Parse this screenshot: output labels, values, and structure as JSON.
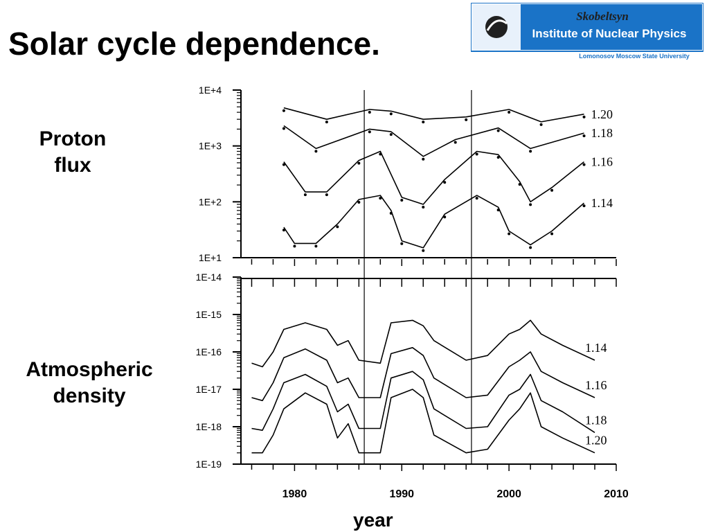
{
  "slide": {
    "title": "Solar cycle dependence."
  },
  "logo": {
    "top_line": "Skobeltsyn",
    "main_line": "Institute of Nuclear Physics",
    "university": "Lomonosov Moscow State University",
    "colors": {
      "blue": "#1a73c7",
      "red": "#c0392b",
      "dark": "#202020"
    }
  },
  "labels": {
    "proton": "Proton flux",
    "proton_lines": [
      "Proton",
      "flux"
    ],
    "atmos_lines": [
      "Atmospheric",
      "density"
    ],
    "xaxis": "year"
  },
  "chart_data": [
    {
      "type": "line",
      "panel": "proton flux",
      "ylabel": "Proton flux",
      "yscale": "log",
      "ylim": [
        10,
        10000
      ],
      "ytick_labels": [
        "1E+4",
        "1E+3",
        "1E+2",
        "1E+1"
      ],
      "xlim": [
        1975,
        2010
      ],
      "legend": "none",
      "series": [
        {
          "name": "1.20",
          "x": [
            1979,
            1983,
            1987,
            1989,
            1992,
            1996,
            2000,
            2003,
            2007
          ],
          "y": [
            4800,
            3000,
            4500,
            4200,
            3000,
            3300,
            4500,
            2700,
            3700
          ]
        },
        {
          "name": "1.18",
          "x": [
            1979,
            1982,
            1987,
            1989,
            1992,
            1995,
            1999,
            2002,
            2007
          ],
          "y": [
            2300,
            900,
            2000,
            1800,
            650,
            1300,
            2100,
            900,
            1700
          ]
        },
        {
          "name": "1.16",
          "x": [
            1979,
            1981,
            1983,
            1986,
            1988,
            1990,
            1992,
            1994,
            1997,
            1999,
            2001,
            2002,
            2004,
            2007
          ],
          "y": [
            520,
            150,
            150,
            550,
            800,
            120,
            90,
            250,
            800,
            700,
            230,
            100,
            180,
            520
          ]
        },
        {
          "name": "1.14",
          "x": [
            1979,
            1980,
            1982,
            1984,
            1986,
            1988,
            1989,
            1990,
            1992,
            1994,
            1997,
            1999,
            2000,
            2002,
            2004,
            2007
          ],
          "y": [
            35,
            18,
            18,
            40,
            110,
            130,
            70,
            20,
            15,
            60,
            130,
            80,
            30,
            17,
            30,
            95
          ]
        }
      ],
      "annotations": [
        "1.20",
        "1.18",
        "1.16",
        "1.14"
      ]
    },
    {
      "type": "line",
      "panel": "atmospheric density",
      "ylabel": "Atmospheric density",
      "yscale": "log",
      "ylim": [
        1e-19,
        1e-14
      ],
      "ytick_labels": [
        "1E-14",
        "1E-15",
        "1E-16",
        "1E-17",
        "1E-18",
        "1E-19"
      ],
      "xlim": [
        1975,
        2010
      ],
      "xtick_labels": [
        "1980",
        "1990",
        "2000",
        "2010"
      ],
      "xlabel": "year",
      "legend": "none",
      "series": [
        {
          "name": "1.14",
          "x": [
            1976,
            1977,
            1978,
            1979,
            1981,
            1983,
            1984,
            1985,
            1986,
            1988,
            1989,
            1991,
            1992,
            1993,
            1996,
            1998,
            2000,
            2001,
            2002,
            2003,
            2005,
            2008
          ],
          "y": [
            5e-17,
            4e-17,
            1e-16,
            4e-16,
            6e-16,
            4e-16,
            1.5e-16,
            2e-16,
            6e-17,
            5e-17,
            6e-16,
            7e-16,
            5e-16,
            2e-16,
            6e-17,
            8e-17,
            3e-16,
            4e-16,
            7e-16,
            3e-16,
            1.5e-16,
            6e-17
          ]
        },
        {
          "name": "1.16",
          "x": [
            1976,
            1977,
            1978,
            1979,
            1981,
            1983,
            1984,
            1985,
            1986,
            1988,
            1989,
            1991,
            1992,
            1993,
            1996,
            1998,
            2000,
            2001,
            2002,
            2003,
            2005,
            2008
          ],
          "y": [
            6e-18,
            5e-18,
            1.5e-17,
            7e-17,
            1.2e-16,
            6e-17,
            1.5e-17,
            2e-17,
            6e-18,
            6e-18,
            9e-17,
            1.3e-16,
            8e-17,
            2e-17,
            6e-18,
            7e-18,
            4e-17,
            6e-17,
            1e-16,
            3e-17,
            1.5e-17,
            6e-18
          ]
        },
        {
          "name": "1.18",
          "x": [
            1976,
            1977,
            1978,
            1979,
            1981,
            1983,
            1984,
            1985,
            1986,
            1988,
            1989,
            1991,
            1992,
            1993,
            1996,
            1998,
            2000,
            2001,
            2002,
            2003,
            2005,
            2008
          ],
          "y": [
            9e-19,
            8e-19,
            3e-18,
            1.5e-17,
            2.5e-17,
            1.2e-17,
            2.5e-18,
            4e-18,
            9e-19,
            9e-19,
            2e-17,
            3e-17,
            1.8e-17,
            3e-18,
            9e-19,
            1e-18,
            7e-18,
            1e-17,
            2.5e-17,
            5e-18,
            2.5e-18,
            7e-19
          ]
        },
        {
          "name": "1.20",
          "x": [
            1976,
            1977,
            1978,
            1979,
            1981,
            1983,
            1984,
            1985,
            1986,
            1988,
            1989,
            1991,
            1992,
            1993,
            1996,
            1998,
            2000,
            2001,
            2002,
            2003,
            2005,
            2008
          ],
          "y": [
            2e-19,
            2e-19,
            6e-19,
            3e-18,
            8e-18,
            4e-18,
            5e-19,
            1.2e-18,
            2e-19,
            2e-19,
            6e-18,
            1e-17,
            6e-18,
            6e-19,
            2e-19,
            2.5e-19,
            1.5e-18,
            3e-18,
            8e-18,
            1e-18,
            5e-19,
            2e-19
          ]
        }
      ],
      "annotations": [
        "1.14",
        "1.16",
        "1.18",
        "1.20"
      ]
    }
  ],
  "reference_lines": {
    "x": [
      1986.5,
      1996.5
    ]
  }
}
